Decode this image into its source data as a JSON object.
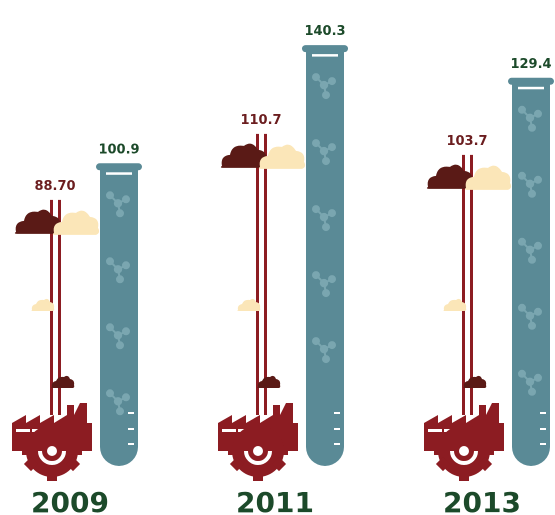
{
  "chart_data": {
    "type": "bar",
    "categories": [
      "2009",
      "2011",
      "2013"
    ],
    "series": [
      {
        "values": [
          88.7,
          110.7,
          103.7
        ],
        "labels": [
          "88.70",
          "110.7",
          "103.7"
        ],
        "color": "#8c1c22"
      },
      {
        "values": [
          100.9,
          140.3,
          129.4
        ],
        "labels": [
          "100.9",
          "140.3",
          "129.4"
        ],
        "color": "#5a8a96"
      }
    ],
    "title": "",
    "xlabel": "",
    "ylabel": "",
    "ylim": [
      0,
      150
    ],
    "grid": false,
    "legend": "none"
  },
  "colors": {
    "dark_red": "#7a1a1e",
    "pipe_red": "#8c1c22",
    "cloud_dark": "#5a1a16",
    "cloud_light": "#fbe6b8",
    "tube": "#5a8a96",
    "tube_molecule": "#7aa6b0",
    "text_green": "#1c4a2a",
    "text_red": "#6b1d1f"
  },
  "icons": [
    "factory-gear-icon",
    "smoke-cloud-icon",
    "test-tube-icon",
    "molecule-icon"
  ]
}
